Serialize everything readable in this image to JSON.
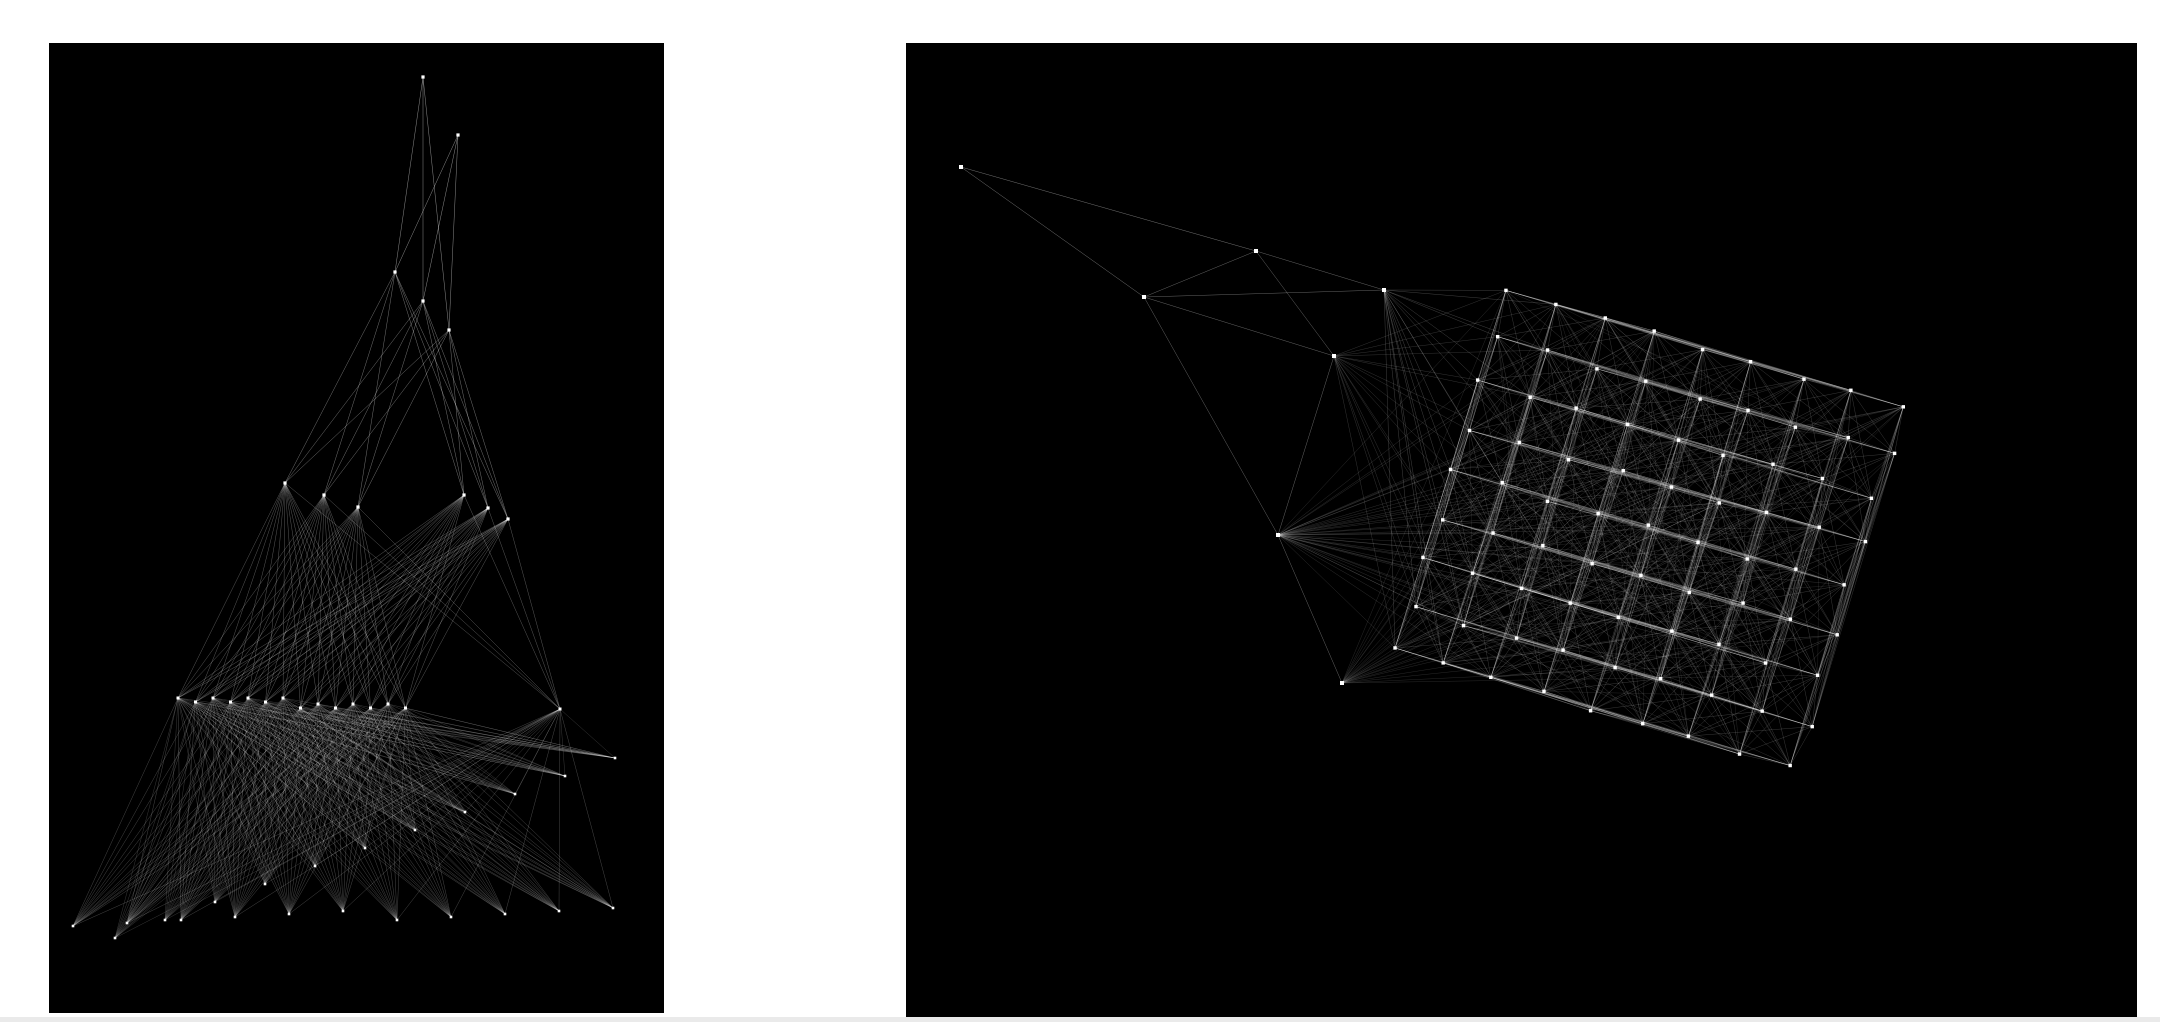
{
  "figure": {
    "panels": [
      {
        "id": "left",
        "description_name": "layered-graph",
        "background": "#000000",
        "edge_color": "#ffffff",
        "node_color": "#ffffff"
      },
      {
        "id": "right",
        "description_name": "lattice-graph",
        "background": "#000000",
        "edge_color": "#ffffff",
        "node_color": "#ffffff"
      }
    ]
  }
}
